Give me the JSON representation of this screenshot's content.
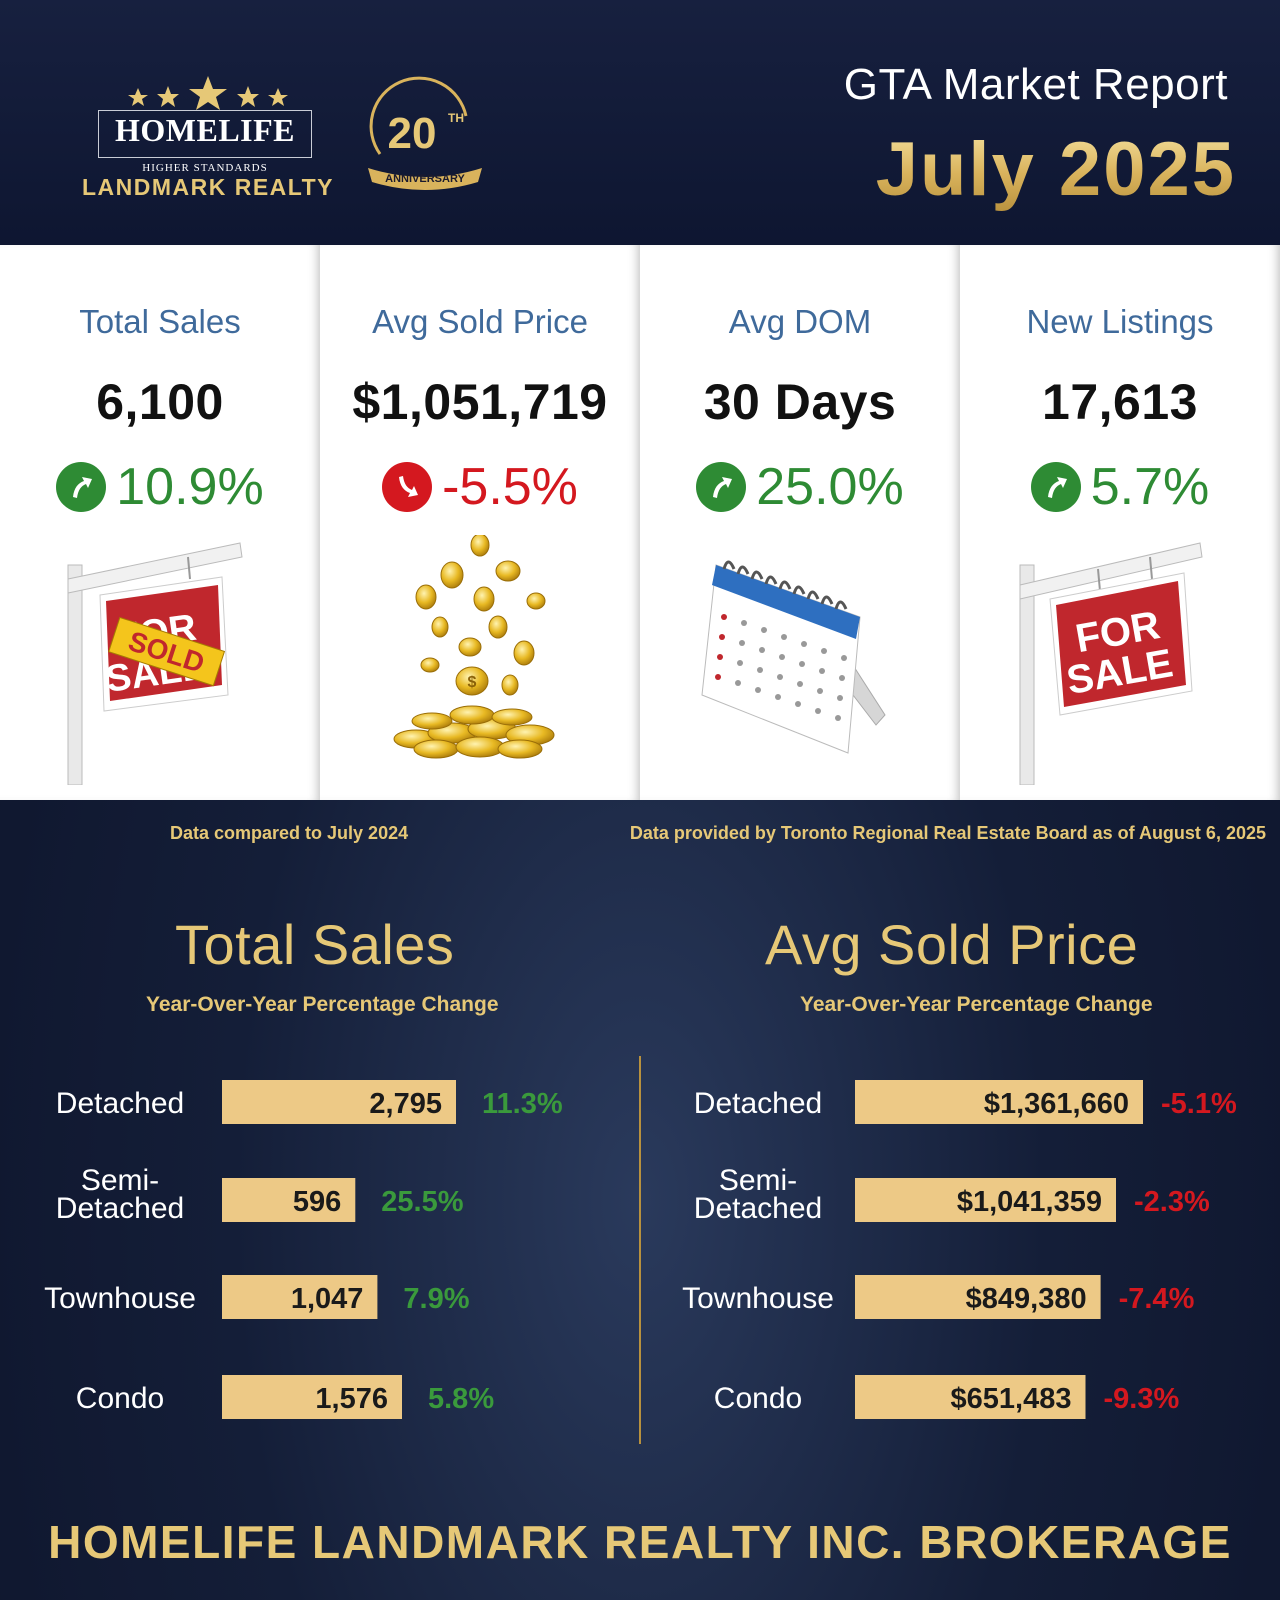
{
  "header": {
    "logo": {
      "name": "HOMELIFE",
      "tagline": "HIGHER STANDARDS",
      "company": "LANDMARK REALTY"
    },
    "anniversary": {
      "number": "20",
      "suffix": "TH",
      "label": "ANNIVERSARY"
    },
    "title": "GTA Market Report",
    "month": "July 2025"
  },
  "cards": [
    {
      "label": "Total Sales",
      "value": "6,100",
      "change": "10.9%",
      "direction": "up",
      "illustration": "sold-sign"
    },
    {
      "label": "Avg Sold Price",
      "value": "$1,051,719",
      "change": "-5.5%",
      "direction": "down",
      "illustration": "gold-coins"
    },
    {
      "label": "Avg DOM",
      "value": "30 Days",
      "change": "25.0%",
      "direction": "up",
      "illustration": "calendar"
    },
    {
      "label": "New Listings",
      "value": "17,613",
      "change": "5.7%",
      "direction": "up",
      "illustration": "for-sale-sign"
    }
  ],
  "notes": {
    "left": "Data compared to July 2024",
    "right": "Data provided by Toronto Regional Real Estate Board as of  August 6, 2025"
  },
  "colors": {
    "gold": "#e6c877",
    "bar": "#edc986",
    "positive": "#3a9a3c",
    "negative": "#d4181f",
    "navy": "#0e1631",
    "label_blue": "#3f6a9b"
  },
  "chart_data": [
    {
      "type": "bar",
      "title": "Total Sales",
      "subtitle": "Year-Over-Year Percentage Change",
      "categories": [
        "Detached",
        "Semi-Detached",
        "Townhouse",
        "Condo"
      ],
      "values": [
        2795,
        596,
        1047,
        1576
      ],
      "value_labels": [
        "2,795",
        "596",
        "1,047",
        "1,576"
      ],
      "changes": [
        "11.3%",
        "25.5%",
        "7.9%",
        "5.8%"
      ],
      "change_direction": [
        "up",
        "up",
        "up",
        "up"
      ]
    },
    {
      "type": "bar",
      "title": "Avg Sold Price",
      "subtitle": "Year-Over-Year Percentage Change",
      "categories": [
        "Detached",
        "Semi-Detached",
        "Townhouse",
        "Condo"
      ],
      "values": [
        1361660,
        1041359,
        849380,
        651483
      ],
      "value_labels": [
        "$1,361,660",
        "$1,041,359",
        "$849,380",
        "$651,483"
      ],
      "changes": [
        "-5.1%",
        "-2.3%",
        "-7.4%",
        "-9.3%"
      ],
      "change_direction": [
        "down",
        "down",
        "down",
        "down"
      ]
    }
  ],
  "footer": "HOMELIFE LANDMARK REALTY INC. BROKERAGE"
}
